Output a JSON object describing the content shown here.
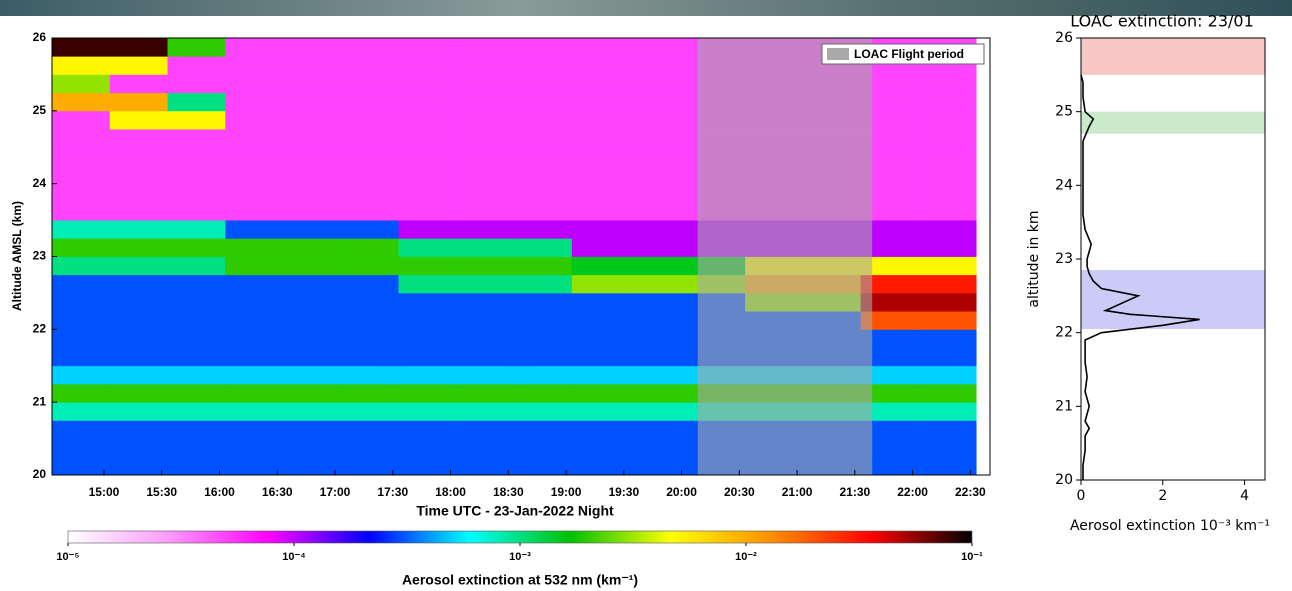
{
  "chart_data": [
    {
      "type": "heatmap",
      "xlabel": "Time UTC - 23-Jan-2022 Night",
      "ylabel": "Altitude AMSL (km)",
      "xlim": [
        14.55,
        22.67
      ],
      "ylim": [
        20,
        26
      ],
      "xticks": [
        {
          "value": 15,
          "label": "15:00"
        },
        {
          "value": 15.5,
          "label": "15:30"
        },
        {
          "value": 16,
          "label": "16:00"
        },
        {
          "value": 16.5,
          "label": "16:30"
        },
        {
          "value": 17,
          "label": "17:00"
        },
        {
          "value": 17.5,
          "label": "17:30"
        },
        {
          "value": 18,
          "label": "18:00"
        },
        {
          "value": 18.5,
          "label": "18:30"
        },
        {
          "value": 19,
          "label": "19:00"
        },
        {
          "value": 19.5,
          "label": "19:30"
        },
        {
          "value": 20,
          "label": "20:00"
        },
        {
          "value": 20.5,
          "label": "20:30"
        },
        {
          "value": 21,
          "label": "21:00"
        },
        {
          "value": 21.5,
          "label": "21:30"
        },
        {
          "value": 22,
          "label": "22:00"
        },
        {
          "value": 22.5,
          "label": "22:30"
        }
      ],
      "yticks": [
        20,
        21,
        22,
        23,
        24,
        25,
        26
      ],
      "x_bins": [
        14.55,
        15.05,
        15.55,
        16.05,
        16.55,
        17.05,
        17.55,
        18.05,
        18.55,
        19.05,
        19.55,
        20.05,
        20.55,
        21.05,
        21.55,
        22.05,
        22.55
      ],
      "y_bins": [
        20,
        20.25,
        20.5,
        20.75,
        21,
        21.25,
        21.5,
        21.75,
        22,
        22.25,
        22.5,
        22.75,
        23,
        23.25,
        23.5,
        23.75,
        24,
        24.25,
        24.5,
        24.75,
        25,
        25.25,
        25.5,
        25.75,
        26
      ],
      "values": [
        [
          0.0003,
          0.0003,
          0.0003,
          0.0003,
          0.0003,
          0.0003,
          0.0003,
          0.0003,
          0.0003,
          0.0003,
          0.0003,
          0.0003,
          0.0003,
          0.0003,
          0.0003,
          0.0003
        ],
        [
          0.0003,
          0.0003,
          0.0003,
          0.0003,
          0.0003,
          0.0003,
          0.0003,
          0.0003,
          0.0003,
          0.0003,
          0.0003,
          0.0003,
          0.0003,
          0.0003,
          0.0003,
          0.0003
        ],
        [
          0.0003,
          0.0003,
          0.0003,
          0.0003,
          0.0003,
          0.0003,
          0.0003,
          0.0003,
          0.0003,
          0.0003,
          0.0003,
          0.0003,
          0.0003,
          0.0003,
          0.0003,
          0.0003
        ],
        [
          0.0008,
          0.0008,
          0.0008,
          0.0008,
          0.0008,
          0.0008,
          0.0008,
          0.0008,
          0.0008,
          0.0008,
          0.0008,
          0.0008,
          0.0008,
          0.0008,
          0.0008,
          0.0008
        ],
        [
          0.002,
          0.002,
          0.002,
          0.002,
          0.002,
          0.002,
          0.002,
          0.002,
          0.002,
          0.002,
          0.002,
          0.002,
          0.002,
          0.002,
          0.002,
          0.002
        ],
        [
          0.0005,
          0.0005,
          0.0005,
          0.0005,
          0.0005,
          0.0005,
          0.0005,
          0.0005,
          0.0005,
          0.0005,
          0.0005,
          0.0005,
          0.0005,
          0.0005,
          0.0005,
          0.0005
        ],
        [
          0.0003,
          0.0003,
          0.0003,
          0.0003,
          0.0003,
          0.0003,
          0.0003,
          0.0003,
          0.0003,
          0.0003,
          0.0003,
          0.0003,
          0.0003,
          0.0003,
          0.0003,
          0.0003
        ],
        [
          0.0003,
          0.0003,
          0.0003,
          0.0003,
          0.0003,
          0.0003,
          0.0003,
          0.0003,
          0.0003,
          0.0003,
          0.0003,
          0.0003,
          0.0003,
          0.0003,
          0.0003,
          0.0003
        ],
        [
          0.0003,
          0.0003,
          0.0003,
          0.0003,
          0.0003,
          0.0003,
          0.0003,
          0.0003,
          0.0003,
          0.0003,
          0.0003,
          0.0003,
          0.0003,
          0.0003,
          0.02,
          0.02
        ],
        [
          0.0003,
          0.0003,
          0.0003,
          0.0003,
          0.0003,
          0.0003,
          0.0003,
          0.0003,
          0.0003,
          0.0003,
          0.0003,
          0.0003,
          0.003,
          0.003,
          0.05,
          0.05
        ],
        [
          0.0003,
          0.0003,
          0.0003,
          0.0003,
          0.0003,
          0.0003,
          0.001,
          0.001,
          0.001,
          0.003,
          0.003,
          0.003,
          0.01,
          0.01,
          0.03,
          0.03
        ],
        [
          0.001,
          0.001,
          0.001,
          0.002,
          0.002,
          0.002,
          0.002,
          0.002,
          0.002,
          0.0015,
          0.0015,
          0.0015,
          0.005,
          0.005,
          0.005,
          0.005
        ],
        [
          0.002,
          0.002,
          0.002,
          0.002,
          0.002,
          0.002,
          0.001,
          0.001,
          0.001,
          0.0001,
          0.0001,
          0.0001,
          0.0001,
          0.0001,
          0.0001,
          0.0001
        ],
        [
          0.0008,
          0.0008,
          0.0008,
          0.0003,
          0.0003,
          0.0003,
          0.0001,
          0.0001,
          0.0001,
          0.0001,
          0.0001,
          0.0001,
          0.0001,
          0.0001,
          0.0001,
          0.0001
        ],
        [
          5e-05,
          5e-05,
          5e-05,
          5e-05,
          5e-05,
          5e-05,
          5e-05,
          5e-05,
          5e-05,
          5e-05,
          5e-05,
          5e-05,
          5e-05,
          5e-05,
          5e-05,
          5e-05
        ],
        [
          5e-05,
          5e-05,
          5e-05,
          5e-05,
          5e-05,
          5e-05,
          5e-05,
          5e-05,
          5e-05,
          5e-05,
          5e-05,
          5e-05,
          5e-05,
          5e-05,
          5e-05,
          5e-05
        ],
        [
          5e-05,
          5e-05,
          5e-05,
          5e-05,
          5e-05,
          5e-05,
          5e-05,
          5e-05,
          5e-05,
          5e-05,
          5e-05,
          5e-05,
          5e-05,
          5e-05,
          5e-05,
          5e-05
        ],
        [
          5e-05,
          5e-05,
          5e-05,
          5e-05,
          5e-05,
          5e-05,
          5e-05,
          5e-05,
          5e-05,
          5e-05,
          5e-05,
          5e-05,
          5e-05,
          5e-05,
          5e-05,
          5e-05
        ],
        [
          5e-05,
          5e-05,
          5e-05,
          5e-05,
          5e-05,
          5e-05,
          5e-05,
          5e-05,
          5e-05,
          5e-05,
          5e-05,
          5e-05,
          5e-05,
          5e-05,
          5e-05,
          5e-05
        ],
        [
          5e-05,
          0.005,
          0.005,
          5e-05,
          5e-05,
          5e-05,
          5e-05,
          5e-05,
          5e-05,
          5e-05,
          5e-05,
          5e-05,
          5e-05,
          5e-05,
          5e-05,
          5e-05
        ],
        [
          0.01,
          0.01,
          0.001,
          5e-05,
          5e-05,
          5e-05,
          5e-05,
          5e-05,
          5e-05,
          5e-05,
          5e-05,
          5e-05,
          5e-05,
          5e-05,
          5e-05,
          5e-05
        ],
        [
          0.003,
          5e-05,
          5e-05,
          5e-05,
          5e-05,
          5e-05,
          5e-05,
          5e-05,
          5e-05,
          5e-05,
          5e-05,
          5e-05,
          5e-05,
          5e-05,
          5e-05,
          5e-05
        ],
        [
          0.005,
          0.005,
          5e-05,
          5e-05,
          5e-05,
          5e-05,
          5e-05,
          5e-05,
          5e-05,
          5e-05,
          5e-05,
          5e-05,
          5e-05,
          5e-05,
          5e-05,
          5e-05
        ],
        [
          0.08,
          0.08,
          0.002,
          5e-05,
          5e-05,
          5e-05,
          5e-05,
          5e-05,
          5e-05,
          5e-05,
          5e-05,
          5e-05,
          5e-05,
          5e-05,
          5e-05,
          5e-05
        ]
      ],
      "colormap": [
        "#ffffff",
        "#ff9cff",
        "#ff00ff",
        "#0000ff",
        "#00ffff",
        "#00c000",
        "#ffff00",
        "#ff9000",
        "#ff0000",
        "#000000"
      ],
      "colorbar": {
        "label": "Aerosol extinction at 532 nm (km⁻¹)",
        "log": true,
        "lim": [
          1e-05,
          0.1
        ],
        "ticks": [
          {
            "value": 1e-05,
            "label": "10⁻⁵"
          },
          {
            "value": 0.0001,
            "label": "10⁻⁴"
          },
          {
            "value": 0.001,
            "label": "10⁻³"
          },
          {
            "value": 0.01,
            "label": "10⁻²"
          },
          {
            "value": 0.1,
            "label": "10⁻¹"
          }
        ]
      },
      "shade": {
        "label": "LOAC Flight period",
        "x": [
          20.14,
          21.65
        ],
        "color": "#a9a9a9"
      },
      "legend": "upper right"
    },
    {
      "type": "line",
      "title": "LOAC extinction: 23/01",
      "xlabel": "Aerosol extinction 10⁻³ km⁻¹",
      "ylabel": "altitude in km",
      "xlim": [
        0,
        4.5
      ],
      "ylim": [
        20,
        26
      ],
      "xticks": [
        0,
        2,
        4
      ],
      "yticks": [
        20,
        21,
        22,
        23,
        24,
        25,
        26
      ],
      "altitude": [
        20,
        20.2,
        20.4,
        20.6,
        20.7,
        20.8,
        21,
        21.2,
        21.4,
        21.6,
        21.8,
        21.9,
        22,
        22.1,
        22.18,
        22.25,
        22.3,
        22.4,
        22.5,
        22.6,
        22.7,
        22.8,
        22.9,
        23,
        23.2,
        23.4,
        23.6,
        23.8,
        24,
        24.3,
        24.6,
        24.8,
        24.9,
        25,
        25.2,
        25.4,
        25.5
      ],
      "values": [
        0.05,
        0.05,
        0.1,
        0.1,
        0.2,
        0.1,
        0.2,
        0.1,
        0.15,
        0.1,
        0.1,
        0.1,
        0.5,
        2.0,
        2.9,
        1.2,
        0.6,
        1.0,
        1.4,
        0.5,
        0.3,
        0.2,
        0.15,
        0.15,
        0.25,
        0.1,
        0.05,
        0.05,
        0.05,
        0.05,
        0.05,
        0.2,
        0.3,
        0.1,
        0.05,
        0.05,
        0.0
      ],
      "color": "#000000",
      "bands": [
        {
          "range": [
            25.5,
            26
          ],
          "color": "#f2a0a0"
        },
        {
          "range": [
            24.7,
            25.0
          ],
          "color": "#a6d9a6"
        },
        {
          "range": [
            22.05,
            22.85
          ],
          "color": "#a9a9f2"
        }
      ]
    }
  ]
}
